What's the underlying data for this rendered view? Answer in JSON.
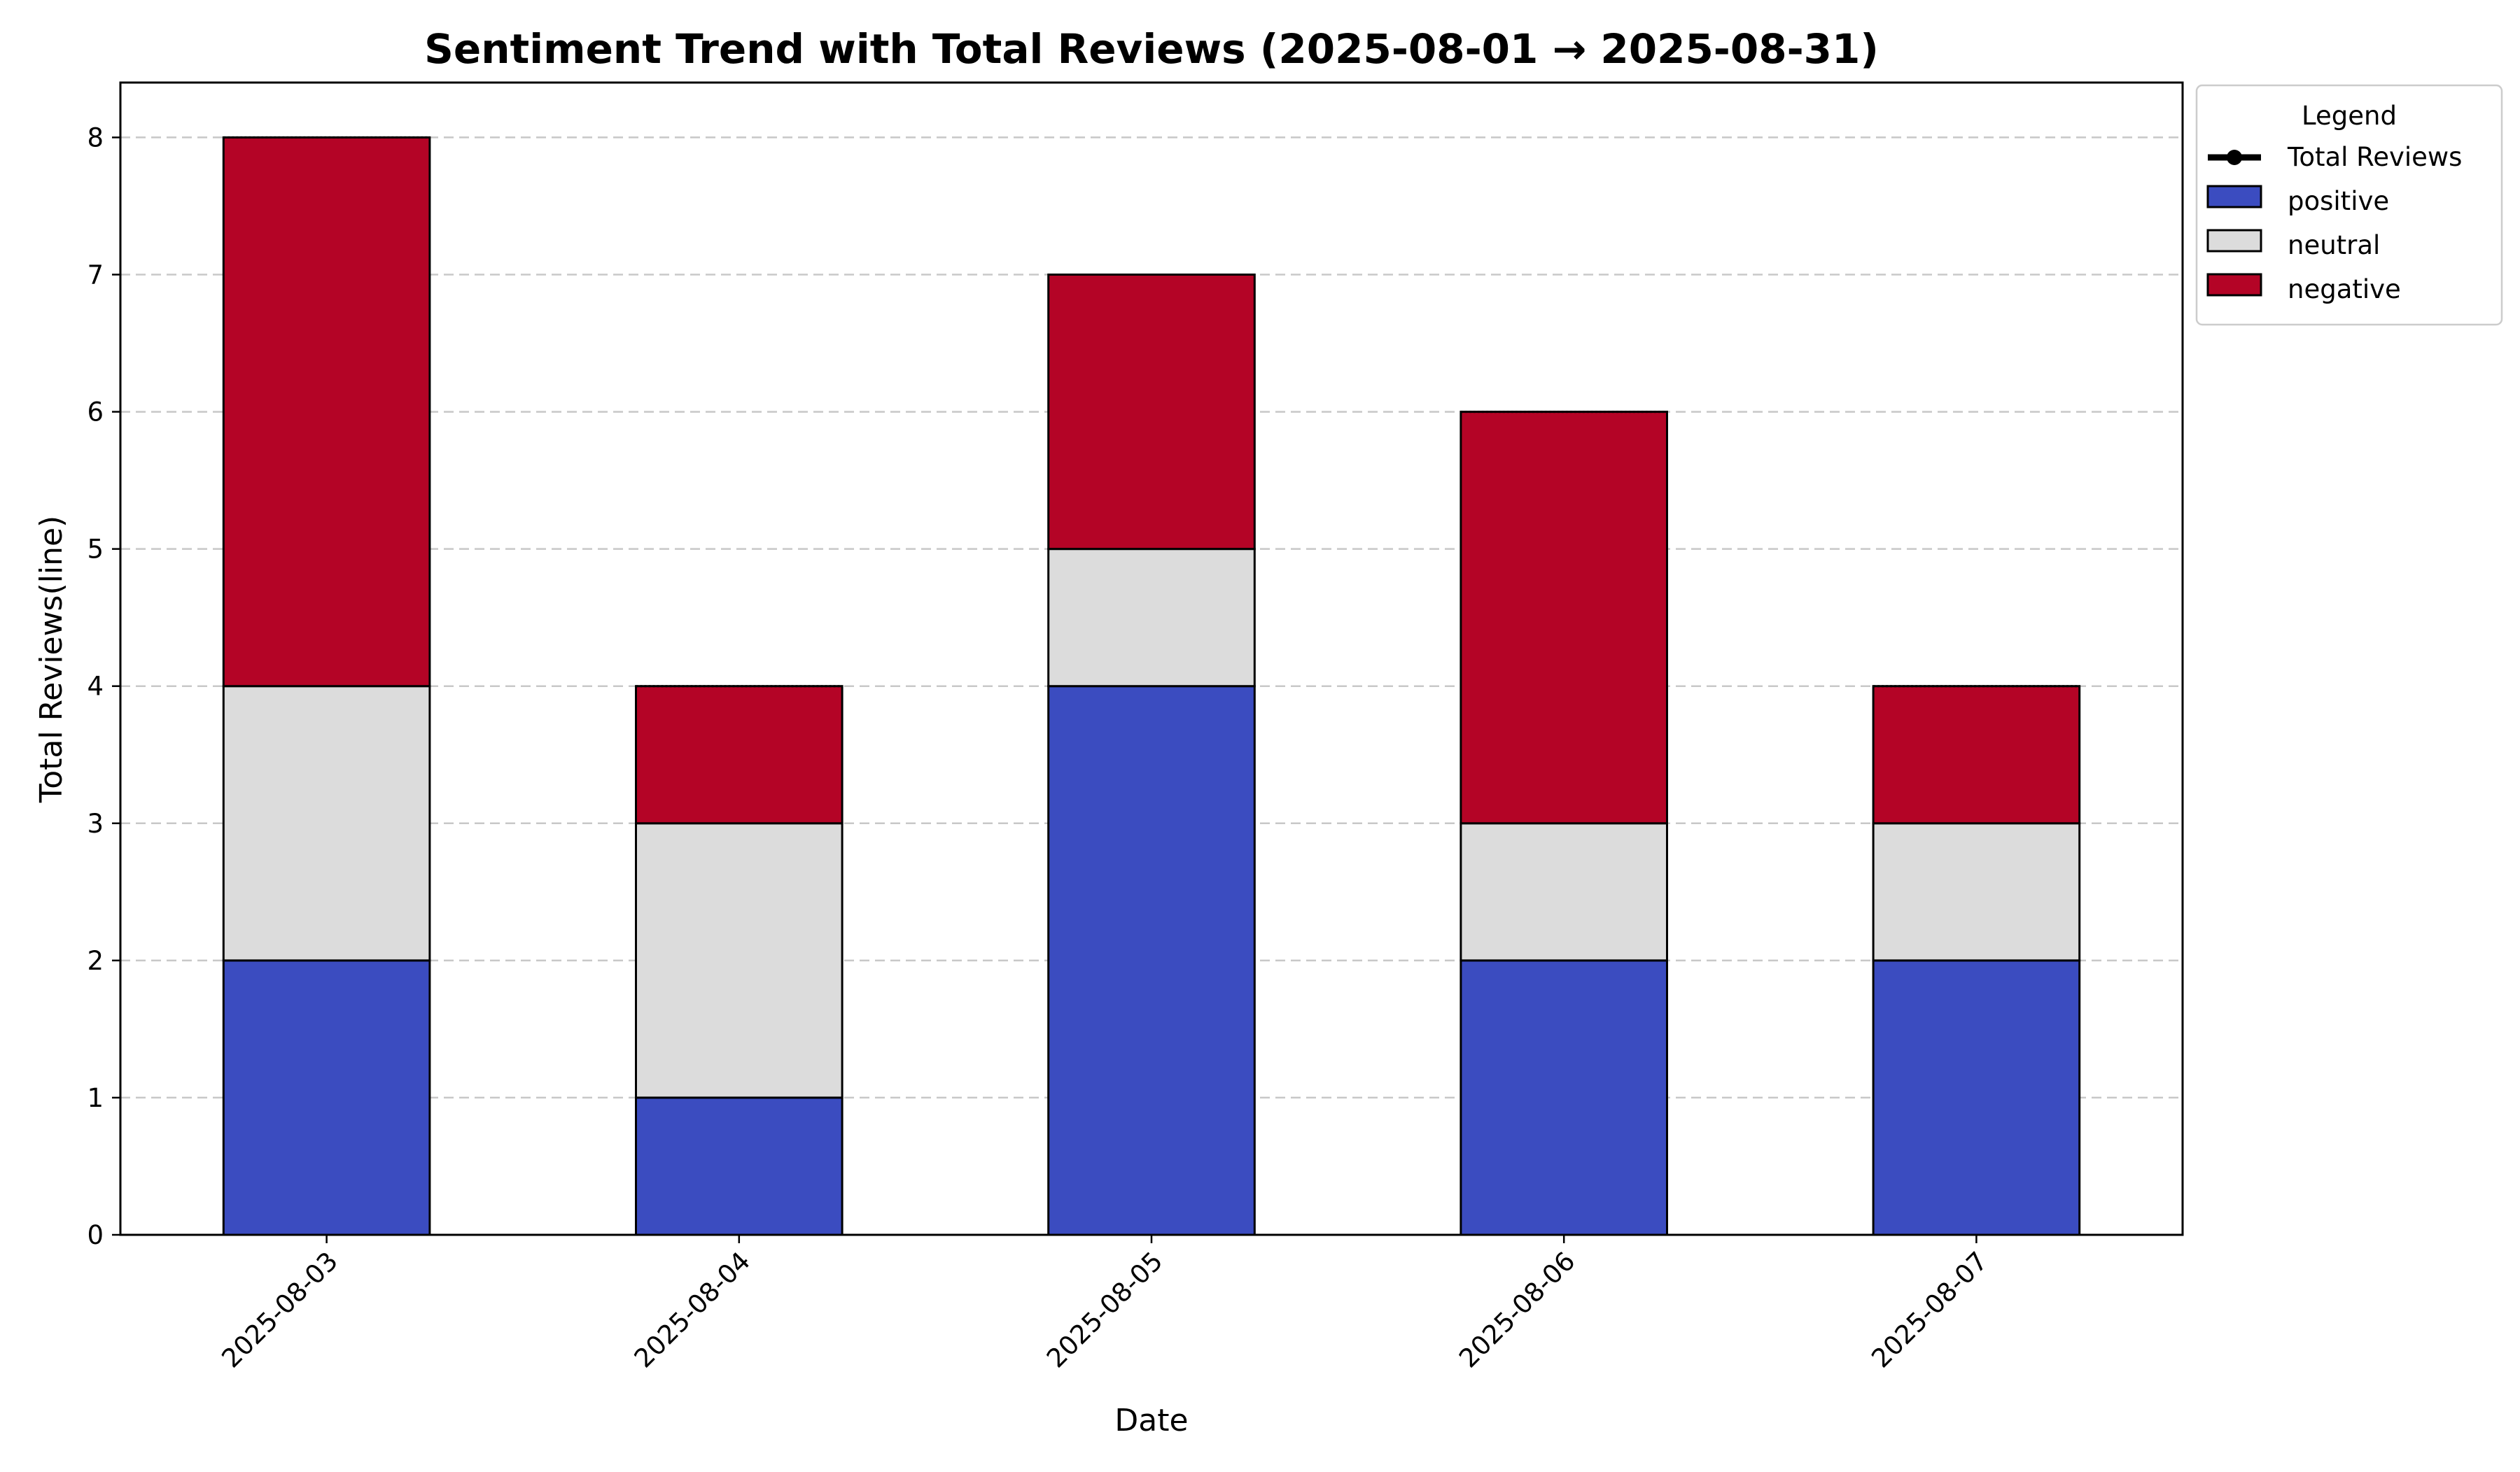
{
  "chart_data": {
    "type": "bar",
    "stacked": true,
    "title": "Sentiment Trend with Total Reviews (2025-08-01 → 2025-08-31)",
    "xlabel": "Date",
    "ylabel": "Total Reviews(line)",
    "categories": [
      "2025-08-03",
      "2025-08-04",
      "2025-08-05",
      "2025-08-06",
      "2025-08-07"
    ],
    "series": [
      {
        "name": "positive",
        "values": [
          2,
          1,
          4,
          2,
          2
        ],
        "color": "#3b4cc0"
      },
      {
        "name": "neutral",
        "values": [
          2,
          2,
          1,
          1,
          1
        ],
        "color": "#dcdcdc"
      },
      {
        "name": "negative",
        "values": [
          4,
          1,
          2,
          3,
          1
        ],
        "color": "#b40426"
      }
    ],
    "line_series": {
      "name": "Total Reviews",
      "values": [
        8,
        4,
        7,
        6,
        4
      ],
      "color": "#000000"
    },
    "ylim": [
      0,
      8.4
    ],
    "yticks": [
      0,
      1,
      2,
      3,
      4,
      5,
      6,
      7,
      8
    ],
    "grid": "y-dashed",
    "legend": {
      "title": "Legend",
      "placement": "outside-upper-right",
      "entries": [
        "Total Reviews",
        "positive",
        "neutral",
        "negative"
      ]
    }
  }
}
